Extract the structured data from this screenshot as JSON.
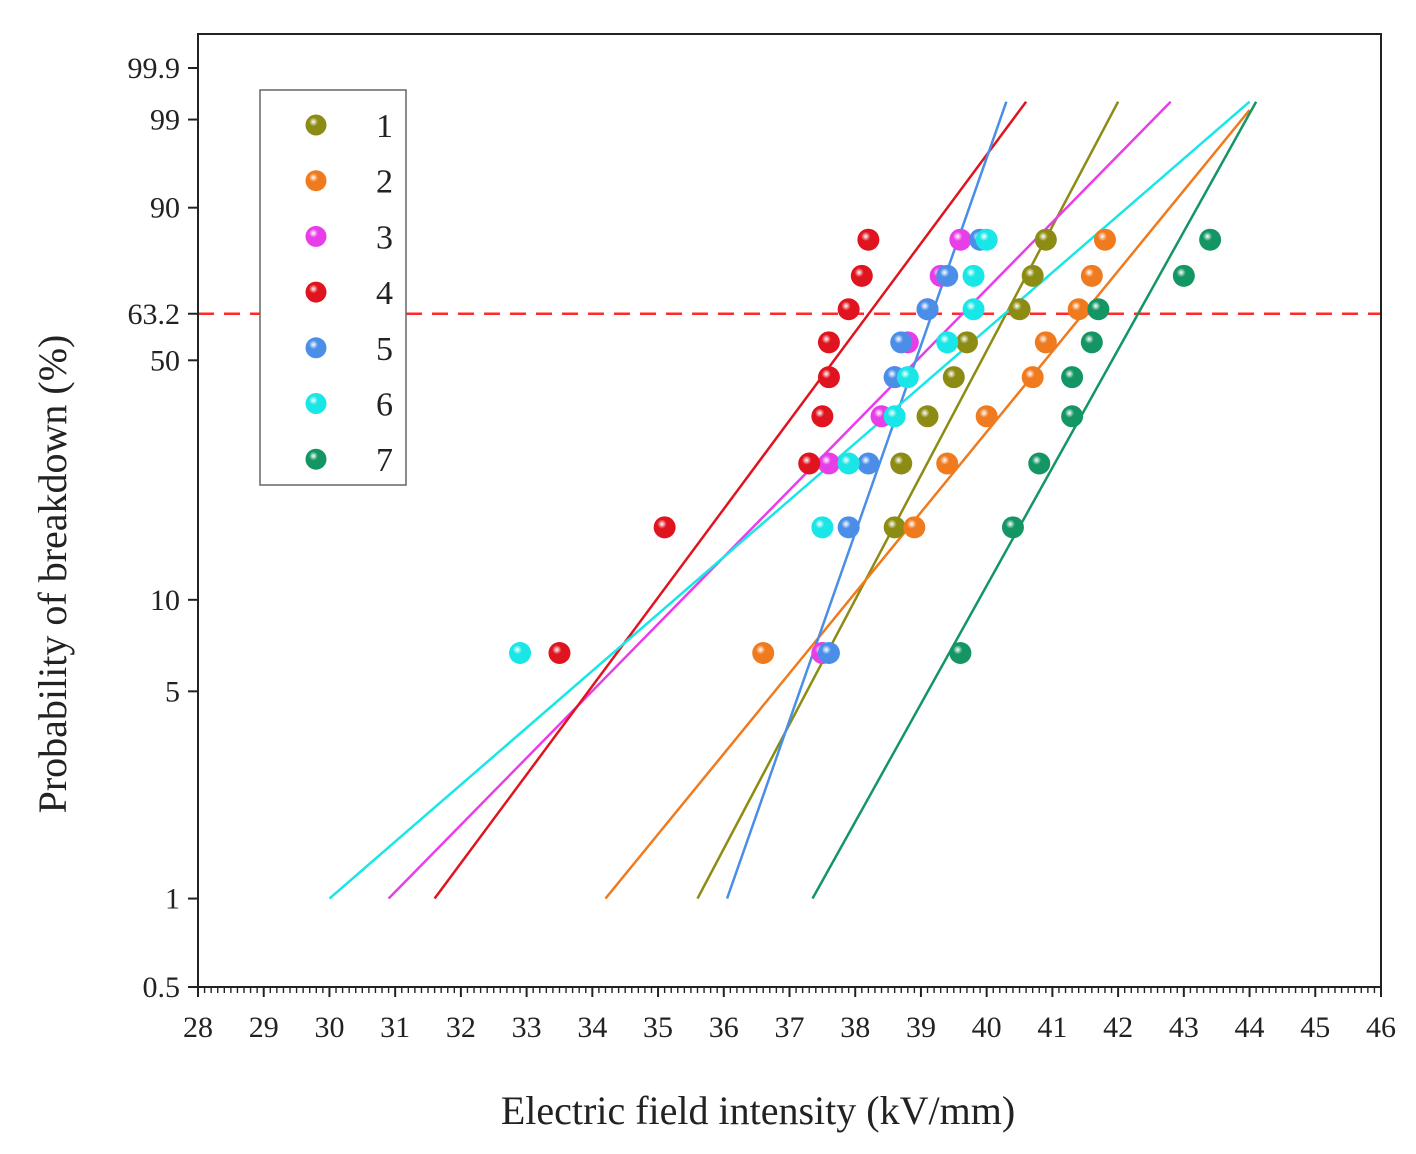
{
  "chart_data": {
    "type": "scatter",
    "title": "",
    "xlabel": "Electric field intensity (kV/mm)",
    "ylabel": "Probability of breakdown (%)",
    "xlim": [
      28,
      46
    ],
    "ylim": [
      0.5,
      99.9
    ],
    "y_scale": "weibull",
    "x_ticks": [
      28,
      29,
      30,
      31,
      32,
      33,
      34,
      35,
      36,
      37,
      38,
      39,
      40,
      41,
      42,
      43,
      44,
      45,
      46
    ],
    "y_ticks": [
      {
        "value": 0.5,
        "label": "0.5"
      },
      {
        "value": 1,
        "label": "1"
      },
      {
        "value": 5,
        "label": "5"
      },
      {
        "value": 10,
        "label": "10"
      },
      {
        "value": 50,
        "label": "50"
      },
      {
        "value": 63.2,
        "label": "63.2"
      },
      {
        "value": 90,
        "label": "90"
      },
      {
        "value": 99,
        "label": "99"
      },
      {
        "value": 99.9,
        "label": "99.9"
      }
    ],
    "reference_line": {
      "y": 63.2,
      "color": "#ff2a2a",
      "style": "dashed"
    },
    "legend": {
      "placement": "top-left"
    },
    "series": [
      {
        "name": "1",
        "color": "#8c8c14",
        "x": [
          37.5,
          38.6,
          38.7,
          39.1,
          39.5,
          39.7,
          40.5,
          40.7,
          40.9
        ],
        "y": [
          6.7,
          17.0,
          26.5,
          36.0,
          45.5,
          55.0,
          64.5,
          74.0,
          83.3
        ],
        "fit": {
          "x": [
            35.6,
            42.0
          ],
          "y": [
            1,
            99.5
          ]
        }
      },
      {
        "name": "2",
        "color": "#f07a1e",
        "x": [
          36.6,
          38.9,
          39.4,
          40.0,
          40.7,
          40.9,
          41.4,
          41.6,
          41.8
        ],
        "y": [
          6.7,
          17.0,
          26.5,
          36.0,
          45.5,
          55.0,
          64.5,
          74.0,
          83.3
        ],
        "fit": {
          "x": [
            34.2,
            44.0
          ],
          "y": [
            1,
            99.3
          ]
        }
      },
      {
        "name": "3",
        "color": "#e83ee8",
        "x": [
          37.5,
          37.6,
          38.4,
          38.6,
          38.8,
          39.1,
          39.3,
          39.6
        ],
        "y": [
          6.7,
          26.5,
          36.0,
          45.5,
          55.0,
          64.5,
          74.0,
          83.3
        ],
        "fit": {
          "x": [
            30.9,
            42.8
          ],
          "y": [
            1,
            99.5
          ]
        }
      },
      {
        "name": "4",
        "color": "#e0141e",
        "x": [
          33.5,
          35.1,
          37.3,
          37.5,
          37.6,
          37.6,
          37.9,
          38.1,
          38.2
        ],
        "y": [
          6.7,
          17.0,
          26.5,
          36.0,
          45.5,
          55.0,
          64.5,
          74.0,
          83.3
        ],
        "fit": {
          "x": [
            31.6,
            40.6
          ],
          "y": [
            1,
            99.5
          ]
        }
      },
      {
        "name": "5",
        "color": "#4a8ee8",
        "x": [
          37.6,
          37.9,
          38.2,
          38.6,
          38.7,
          39.1,
          39.4,
          39.9
        ],
        "y": [
          6.7,
          17.0,
          26.5,
          45.5,
          55.0,
          64.5,
          74.0,
          83.3
        ],
        "fit": {
          "x": [
            36.05,
            40.3
          ],
          "y": [
            1,
            99.5
          ]
        }
      },
      {
        "name": "6",
        "color": "#19e6e6",
        "x": [
          32.9,
          37.5,
          37.9,
          38.6,
          38.8,
          39.4,
          39.8,
          39.8,
          40.0
        ],
        "y": [
          6.7,
          17.0,
          26.5,
          36.0,
          45.5,
          55.0,
          64.5,
          74.0,
          83.3
        ],
        "fit": {
          "x": [
            30.0,
            44.0
          ],
          "y": [
            1,
            99.5
          ]
        }
      },
      {
        "name": "7",
        "color": "#149664",
        "x": [
          39.6,
          40.4,
          40.8,
          41.3,
          41.3,
          41.6,
          41.7,
          43.0,
          43.4
        ],
        "y": [
          6.7,
          17.0,
          26.5,
          36.0,
          45.5,
          55.0,
          64.5,
          74.0,
          83.3
        ],
        "fit": {
          "x": [
            37.35,
            44.1
          ],
          "y": [
            1,
            99.5
          ]
        }
      }
    ]
  }
}
